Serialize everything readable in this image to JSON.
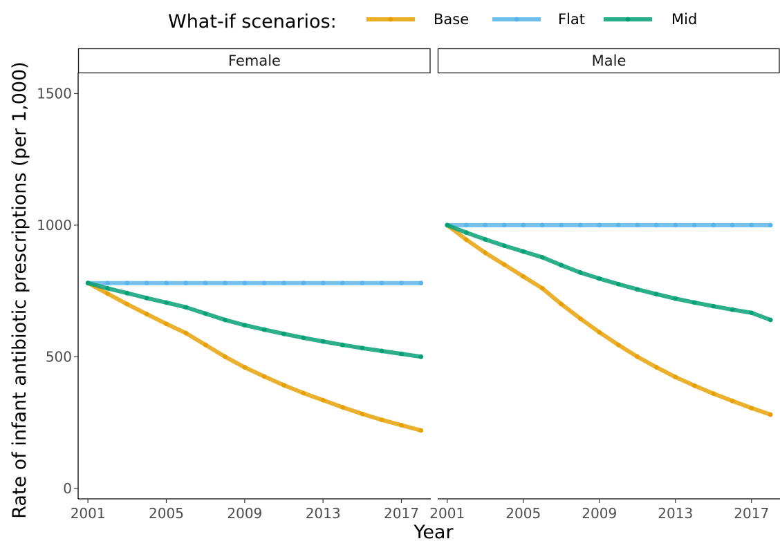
{
  "legend": {
    "title": "What-if scenarios:"
  },
  "chart_data": {
    "type": "line",
    "xlabel": "Year",
    "ylabel": "Rate of infant antibiotic prescriptions (per 1,000)",
    "xlim": [
      2000.5,
      2018.5
    ],
    "ylim": [
      -40,
      1580
    ],
    "x_ticks": [
      2001,
      2005,
      2009,
      2013,
      2017
    ],
    "y_ticks": [
      0,
      500,
      1000,
      1500
    ],
    "x_tick_labels": [
      "2001",
      "2005",
      "2009",
      "2013",
      "2017"
    ],
    "y_tick_labels": [
      "0",
      "500",
      "1000",
      "1500"
    ],
    "grid": false,
    "legend_position": "top",
    "x": [
      2001,
      2002,
      2003,
      2004,
      2005,
      2006,
      2007,
      2008,
      2009,
      2010,
      2011,
      2012,
      2013,
      2014,
      2015,
      2016,
      2017,
      2018
    ],
    "panels": [
      {
        "name": "Female",
        "series": [
          {
            "name": "Base",
            "color": "#E69F00",
            "values": [
              780,
              740,
              700,
              662,
              625,
              590,
              545,
              500,
              460,
              425,
              392,
              362,
              335,
              308,
              283,
              260,
              240,
              220
            ]
          },
          {
            "name": "Flat",
            "color": "#56B4E9",
            "values": [
              780,
              780,
              780,
              780,
              780,
              780,
              780,
              780,
              780,
              780,
              780,
              780,
              780,
              780,
              780,
              780,
              780,
              780
            ]
          },
          {
            "name": "Mid",
            "color": "#009E73",
            "values": [
              780,
              760,
              742,
              723,
              706,
              688,
              664,
              640,
              620,
              603,
              587,
              572,
              558,
              545,
              533,
              522,
              511,
              500
            ]
          }
        ]
      },
      {
        "name": "Male",
        "series": [
          {
            "name": "Base",
            "color": "#E69F00",
            "values": [
              1000,
              945,
              895,
              850,
              805,
              760,
              700,
              645,
              593,
              545,
              500,
              460,
              423,
              390,
              360,
              332,
              305,
              280
            ]
          },
          {
            "name": "Flat",
            "color": "#56B4E9",
            "values": [
              1000,
              1000,
              1000,
              1000,
              1000,
              1000,
              1000,
              1000,
              1000,
              1000,
              1000,
              1000,
              1000,
              1000,
              1000,
              1000,
              1000,
              1000
            ]
          },
          {
            "name": "Mid",
            "color": "#009E73",
            "values": [
              1000,
              972,
              946,
              922,
              900,
              878,
              848,
              820,
              797,
              776,
              756,
              738,
              721,
              706,
              692,
              679,
              667,
              640
            ]
          }
        ]
      }
    ]
  }
}
